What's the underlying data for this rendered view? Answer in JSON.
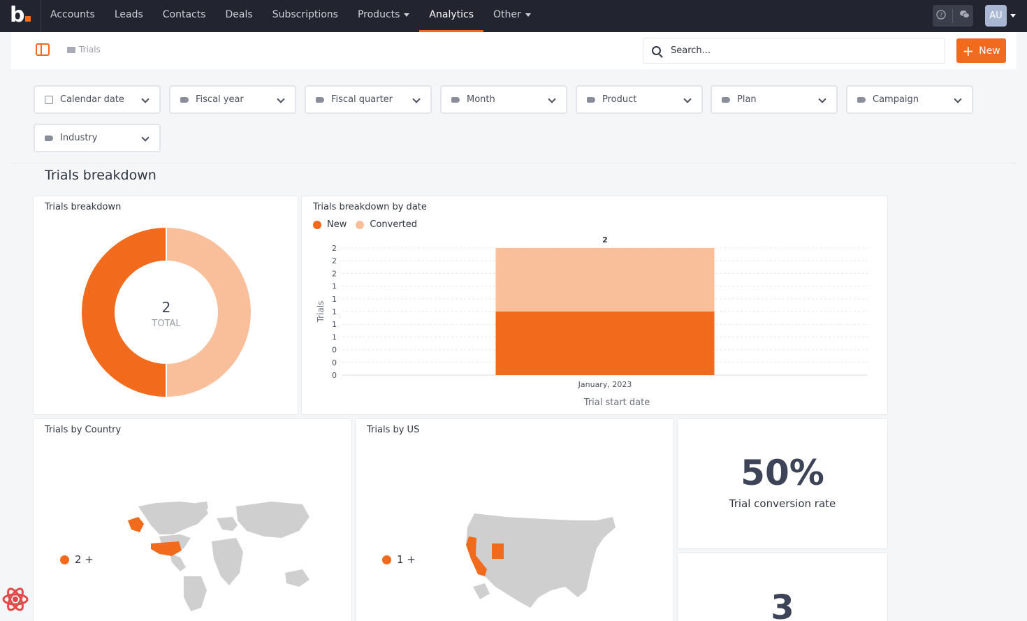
{
  "nav": {
    "logo": "b",
    "items": [
      {
        "label": "Accounts"
      },
      {
        "label": "Leads"
      },
      {
        "label": "Contacts"
      },
      {
        "label": "Deals"
      },
      {
        "label": "Subscriptions"
      },
      {
        "label": "Products",
        "dropdown": true
      },
      {
        "label": "Analytics",
        "active": true
      },
      {
        "label": "Other",
        "dropdown": true
      }
    ],
    "avatar": "AU",
    "icons": [
      "help-icon",
      "chat-icon"
    ]
  },
  "subbar": {
    "breadcrumb": "Trials",
    "search_placeholder": "Search...",
    "new_label": "New"
  },
  "filters": [
    {
      "label": "Calendar date",
      "icon": "calendar-icon"
    },
    {
      "label": "Fiscal year",
      "icon": "tag-icon"
    },
    {
      "label": "Fiscal quarter",
      "icon": "tag-icon"
    },
    {
      "label": "Month",
      "icon": "tag-icon"
    },
    {
      "label": "Product",
      "icon": "tag-icon"
    },
    {
      "label": "Plan",
      "icon": "tag-icon"
    },
    {
      "label": "Campaign",
      "icon": "tag-icon"
    },
    {
      "label": "Industry",
      "icon": "tag-icon"
    }
  ],
  "section_title": "Trials breakdown",
  "colors": {
    "accent": "#f26a1b",
    "converted": "#f9bf9a",
    "map_base": "#cfcfcf"
  },
  "cards": {
    "donut_title": "Trials breakdown",
    "bar_title": "Trials breakdown by date",
    "country_title": "Trials by Country",
    "us_title": "Trials by US",
    "kpi1_value": "50%",
    "kpi1_label": "Trial conversion rate",
    "kpi2_value": "3",
    "country_legend": "2 +",
    "us_legend": "1 +"
  },
  "chart_data": [
    {
      "type": "pie",
      "title": "Trials breakdown",
      "labels": [
        "New",
        "Converted"
      ],
      "values": [
        1,
        1
      ],
      "center_value": "2",
      "center_label": "TOTAL"
    },
    {
      "type": "bar",
      "title": "Trials breakdown by date",
      "stacked": true,
      "categories": [
        "January, 2023"
      ],
      "series": [
        {
          "name": "New",
          "values": [
            1
          ]
        },
        {
          "name": "Converted",
          "values": [
            1
          ]
        }
      ],
      "total_labels": [
        "2"
      ],
      "xlabel": "Trial start date",
      "ylabel": "Trials",
      "ylim": [
        0,
        2
      ],
      "y_tick_labels": [
        "2",
        "2",
        "2",
        "1",
        "1",
        "1",
        "1",
        "1",
        "0",
        "0",
        "0"
      ],
      "legend": "top-left",
      "grid": true
    }
  ]
}
